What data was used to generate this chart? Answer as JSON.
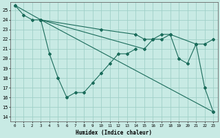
{
  "title": "",
  "xlabel": "Humidex (Indice chaleur)",
  "background_color": "#c8eae4",
  "grid_color": "#a0d0c8",
  "line_color": "#1a6b5a",
  "xlim": [
    -0.5,
    23.5
  ],
  "ylim": [
    13.5,
    25.8
  ],
  "yticks": [
    14,
    15,
    16,
    17,
    18,
    19,
    20,
    21,
    22,
    23,
    24,
    25
  ],
  "xticks": [
    0,
    1,
    2,
    3,
    4,
    5,
    6,
    7,
    8,
    9,
    10,
    11,
    12,
    13,
    14,
    15,
    16,
    17,
    18,
    19,
    20,
    21,
    22,
    23
  ],
  "series": [
    {
      "x": [
        0,
        1,
        2,
        3,
        4,
        5,
        6,
        7,
        8,
        9,
        10,
        11,
        12,
        13,
        14
      ],
      "y": [
        25.5,
        24.5,
        24.0,
        24.0,
        20.5,
        18.0,
        16.0,
        16.5,
        16.5,
        17.5,
        18.5,
        19.5,
        20.5,
        20.5,
        21.0
      ]
    },
    {
      "x": [
        0,
        3,
        10,
        14,
        15,
        16,
        17,
        18,
        21,
        22,
        23
      ],
      "y": [
        25.5,
        24.0,
        23.0,
        22.5,
        22.0,
        22.0,
        22.5,
        22.5,
        21.5,
        21.5,
        22.0
      ]
    },
    {
      "x": [
        3,
        23
      ],
      "y": [
        24.0,
        14.5
      ]
    },
    {
      "x": [
        3,
        15,
        16,
        17,
        18,
        19,
        20,
        21,
        22,
        23
      ],
      "y": [
        24.0,
        21.0,
        22.0,
        22.0,
        22.5,
        20.0,
        19.5,
        21.5,
        17.0,
        14.5
      ]
    }
  ]
}
